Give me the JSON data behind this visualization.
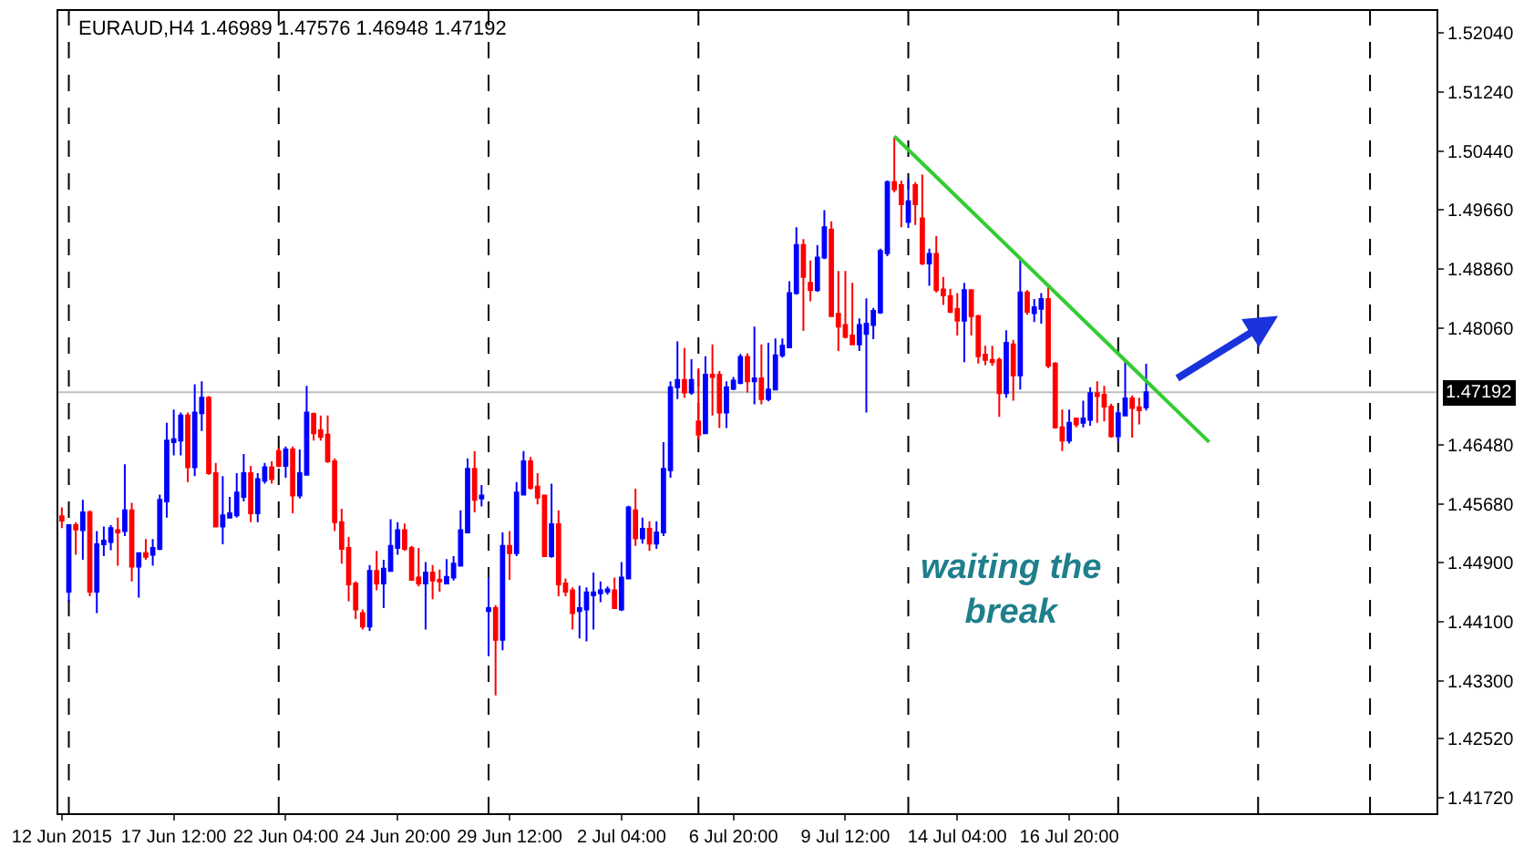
{
  "chart_data": {
    "type": "candlestick",
    "title": "EURAUD,H4 1.46989 1.47576 1.46948 1.47192",
    "categories": [
      "12 Jun 2015",
      null,
      null,
      null,
      null,
      null,
      null,
      null,
      null,
      null,
      null,
      null,
      null,
      null,
      null,
      null,
      "17 Jun 12:00",
      null,
      null,
      null,
      null,
      null,
      null,
      null,
      null,
      null,
      null,
      null,
      null,
      null,
      null,
      null,
      "22 Jun 04:00",
      null,
      null,
      null,
      null,
      null,
      null,
      null,
      null,
      null,
      null,
      null,
      null,
      null,
      null,
      null,
      "24 Jun 20:00",
      null,
      null,
      null,
      null,
      null,
      null,
      null,
      null,
      null,
      null,
      null,
      null,
      null,
      null,
      null,
      "29 Jun 12:00",
      null,
      null,
      null,
      null,
      null,
      null,
      null,
      null,
      null,
      null,
      null,
      null,
      null,
      null,
      null,
      "2 Jul 04:00",
      null,
      null,
      null,
      null,
      null,
      null,
      null,
      null,
      null,
      null,
      null,
      null,
      null,
      null,
      null,
      "6 Jul 20:00",
      null,
      null,
      null,
      null,
      null,
      null,
      null,
      null,
      null,
      null,
      null,
      null,
      null,
      null,
      null,
      "9 Jul 12:00",
      null,
      null,
      null,
      null,
      null,
      null,
      null,
      null,
      null,
      null,
      null,
      null,
      null,
      null,
      null,
      "14 Jul 04:00",
      null,
      null,
      null,
      null,
      null,
      null,
      null,
      null,
      null,
      null,
      null,
      null,
      null,
      null,
      null,
      "16 Jul 20:00",
      null,
      null,
      null,
      null,
      null,
      null,
      null,
      null,
      null,
      null,
      null,
      null,
      null,
      null,
      null,
      null,
      null,
      null,
      null,
      null,
      null,
      null,
      null,
      null,
      null,
      null,
      null,
      null,
      null,
      null,
      null,
      null,
      null,
      null,
      null,
      null,
      null,
      null,
      null,
      null,
      null,
      null,
      null,
      null,
      null,
      null,
      null,
      null,
      null,
      null,
      null,
      null
    ],
    "ohlc": [
      [
        1.4552,
        1.4564,
        1.4536,
        1.4546
      ],
      [
        1.445,
        1.4541,
        1.4436,
        1.454
      ],
      [
        1.454,
        1.4544,
        1.45,
        1.4534
      ],
      [
        1.4533,
        1.4574,
        1.4493,
        1.4557
      ],
      [
        1.4557,
        1.456,
        1.4444,
        1.445
      ],
      [
        1.445,
        1.4532,
        1.4421,
        1.4514
      ],
      [
        1.4514,
        1.4538,
        1.4498,
        1.4519
      ],
      [
        1.4517,
        1.454,
        1.4506,
        1.4536
      ],
      [
        1.4533,
        1.455,
        1.4485,
        1.453
      ],
      [
        1.4532,
        1.4622,
        1.4525,
        1.456
      ],
      [
        1.456,
        1.457,
        1.4464,
        1.4484
      ],
      [
        1.4484,
        1.4502,
        1.4442,
        1.4502
      ],
      [
        1.4502,
        1.4521,
        1.4493,
        1.4497
      ],
      [
        1.45,
        1.4521,
        1.4485,
        1.4509
      ],
      [
        1.4508,
        1.4581,
        1.4506,
        1.4574
      ],
      [
        1.4572,
        1.4678,
        1.455,
        1.4654
      ],
      [
        1.4652,
        1.4696,
        1.4634,
        1.4656
      ],
      [
        1.4654,
        1.4692,
        1.4634,
        1.4688
      ],
      [
        1.4688,
        1.4692,
        1.4598,
        1.4618
      ],
      [
        1.4618,
        1.473,
        1.4606,
        1.4692
      ],
      [
        1.4691,
        1.4734,
        1.4667,
        1.4712
      ],
      [
        1.4712,
        1.4714,
        1.4608,
        1.461
      ],
      [
        1.461,
        1.4624,
        1.4538,
        1.4538
      ],
      [
        1.4538,
        1.4606,
        1.4514,
        1.4553
      ],
      [
        1.455,
        1.4578,
        1.4549,
        1.4556
      ],
      [
        1.4553,
        1.461,
        1.455,
        1.4584
      ],
      [
        1.4578,
        1.4636,
        1.4572,
        1.461
      ],
      [
        1.461,
        1.462,
        1.4544,
        1.4556
      ],
      [
        1.4556,
        1.461,
        1.4544,
        1.4602
      ],
      [
        1.46,
        1.4624,
        1.4596,
        1.4618
      ],
      [
        1.4618,
        1.4626,
        1.4596,
        1.4602
      ],
      [
        1.464,
        1.4644,
        1.4618,
        1.462
      ],
      [
        1.462,
        1.4646,
        1.4604,
        1.4642
      ],
      [
        1.4642,
        1.4646,
        1.4556,
        1.458
      ],
      [
        1.458,
        1.4642,
        1.4576,
        1.461
      ],
      [
        1.4608,
        1.4728,
        1.4608,
        1.4692
      ],
      [
        1.469,
        1.4692,
        1.4654,
        1.4664
      ],
      [
        1.4668,
        1.4688,
        1.4654,
        1.4659
      ],
      [
        1.4662,
        1.4688,
        1.4624,
        1.4626
      ],
      [
        1.4626,
        1.463,
        1.4532,
        1.4544
      ],
      [
        1.4544,
        1.4562,
        1.4488,
        1.4508
      ],
      [
        1.4509,
        1.4524,
        1.4437,
        1.446
      ],
      [
        1.4461,
        1.4464,
        1.4413,
        1.4426
      ],
      [
        1.4421,
        1.4426,
        1.4399,
        1.4403
      ],
      [
        1.4403,
        1.4486,
        1.4397,
        1.4478
      ],
      [
        1.4478,
        1.4505,
        1.4452,
        1.4461
      ],
      [
        1.4461,
        1.4493,
        1.4428,
        1.4481
      ],
      [
        1.4478,
        1.4548,
        1.4477,
        1.4512
      ],
      [
        1.4509,
        1.4544,
        1.45,
        1.4533
      ],
      [
        1.4533,
        1.4542,
        1.4505,
        1.4508
      ],
      [
        1.4509,
        1.4512,
        1.4465,
        1.4466
      ],
      [
        1.4469,
        1.4509,
        1.4457,
        1.4461
      ],
      [
        1.4461,
        1.449,
        1.4399,
        1.4476
      ],
      [
        1.4476,
        1.4486,
        1.444,
        1.4465
      ],
      [
        1.4466,
        1.448,
        1.445,
        1.4464
      ],
      [
        1.4461,
        1.4494,
        1.446,
        1.447
      ],
      [
        1.4469,
        1.4498,
        1.4465,
        1.4488
      ],
      [
        1.4485,
        1.456,
        1.4484,
        1.4533
      ],
      [
        1.453,
        1.463,
        1.4529,
        1.4616
      ],
      [
        1.4616,
        1.464,
        1.4557,
        1.4574
      ],
      [
        1.4576,
        1.4594,
        1.4565,
        1.458
      ],
      [
        1.4424,
        1.4469,
        1.4363,
        1.4428
      ],
      [
        1.4428,
        1.4432,
        1.431,
        1.4385
      ],
      [
        1.4385,
        1.453,
        1.4371,
        1.4512
      ],
      [
        1.4512,
        1.4532,
        1.4466,
        1.4502
      ],
      [
        1.4502,
        1.4598,
        1.4498,
        1.4584
      ],
      [
        1.4581,
        1.464,
        1.4581,
        1.4626
      ],
      [
        1.4626,
        1.4632,
        1.4588,
        1.459
      ],
      [
        1.4592,
        1.461,
        1.4568,
        1.4577
      ],
      [
        1.458,
        1.4581,
        1.4498,
        1.4498
      ],
      [
        1.4498,
        1.4596,
        1.4496,
        1.4541
      ],
      [
        1.4541,
        1.456,
        1.4444,
        1.446
      ],
      [
        1.4461,
        1.4468,
        1.4444,
        1.445
      ],
      [
        1.4452,
        1.4456,
        1.4399,
        1.4421
      ],
      [
        1.4424,
        1.4458,
        1.4387,
        1.4428
      ],
      [
        1.4426,
        1.4456,
        1.4383,
        1.4449
      ],
      [
        1.4445,
        1.4476,
        1.4399,
        1.4449
      ],
      [
        1.4448,
        1.4464,
        1.4436,
        1.4452
      ],
      [
        1.445,
        1.4457,
        1.4446,
        1.4453
      ],
      [
        1.4452,
        1.4469,
        1.4428,
        1.4428
      ],
      [
        1.4426,
        1.449,
        1.4424,
        1.4469
      ],
      [
        1.4468,
        1.4566,
        1.4468,
        1.4564
      ],
      [
        1.456,
        1.4589,
        1.4512,
        1.4522
      ],
      [
        1.4522,
        1.455,
        1.4515,
        1.4535
      ],
      [
        1.4535,
        1.4545,
        1.4505,
        1.4515
      ],
      [
        1.4515,
        1.4545,
        1.4508,
        1.453
      ],
      [
        1.453,
        1.4652,
        1.4525,
        1.4616
      ],
      [
        1.4614,
        1.4734,
        1.4604,
        1.4726
      ],
      [
        1.4726,
        1.4788,
        1.471,
        1.4736
      ],
      [
        1.4736,
        1.4779,
        1.4712,
        1.4719
      ],
      [
        1.4719,
        1.4764,
        1.4716,
        1.4736
      ],
      [
        1.468,
        1.4752,
        1.4656,
        1.4662
      ],
      [
        1.4664,
        1.4768,
        1.4664,
        1.4743
      ],
      [
        1.4743,
        1.4784,
        1.4688,
        1.474
      ],
      [
        1.4743,
        1.4748,
        1.4671,
        1.4692
      ],
      [
        1.4692,
        1.4734,
        1.4671,
        1.4726
      ],
      [
        1.4724,
        1.474,
        1.4722,
        1.4735
      ],
      [
        1.4732,
        1.4771,
        1.473,
        1.4767
      ],
      [
        1.4767,
        1.4772,
        1.4719,
        1.4734
      ],
      [
        1.4734,
        1.4808,
        1.4703,
        1.4738
      ],
      [
        1.4738,
        1.4784,
        1.4703,
        1.471
      ],
      [
        1.471,
        1.4786,
        1.4707,
        1.4723
      ],
      [
        1.4723,
        1.4792,
        1.4722,
        1.4769
      ],
      [
        1.4769,
        1.4792,
        1.4766,
        1.4782
      ],
      [
        1.478,
        1.4869,
        1.4779,
        1.4853
      ],
      [
        1.4853,
        1.4942,
        1.4851,
        1.4918
      ],
      [
        1.4918,
        1.4926,
        1.4802,
        1.4875
      ],
      [
        1.4867,
        1.4897,
        1.4842,
        1.4857
      ],
      [
        1.4857,
        1.4918,
        1.4855,
        1.4901
      ],
      [
        1.4901,
        1.4965,
        1.4899,
        1.4942
      ],
      [
        1.4939,
        1.495,
        1.4821,
        1.4822
      ],
      [
        1.4825,
        1.4883,
        1.4775,
        1.4808
      ],
      [
        1.481,
        1.4883,
        1.4792,
        1.4794
      ],
      [
        1.4796,
        1.4867,
        1.4783,
        1.4784
      ],
      [
        1.4784,
        1.4819,
        1.4775,
        1.481
      ],
      [
        1.4798,
        1.4846,
        1.4692,
        1.4812
      ],
      [
        1.481,
        1.4833,
        1.4791,
        1.4829
      ],
      [
        1.4827,
        1.4913,
        1.4825,
        1.491
      ],
      [
        1.4907,
        1.5005,
        1.4903,
        1.5003
      ],
      [
        1.5003,
        1.5064,
        1.4989,
        1.4993
      ],
      [
        1.4999,
        1.5005,
        1.4942,
        1.4973
      ],
      [
        1.4949,
        1.5007,
        1.4941,
        1.4977
      ],
      [
        1.4999,
        1.5003,
        1.4945,
        1.4973
      ],
      [
        1.4954,
        1.5013,
        1.4891,
        1.4893
      ],
      [
        1.4893,
        1.4913,
        1.4863,
        1.4906
      ],
      [
        1.4906,
        1.493,
        1.4854,
        1.4857
      ],
      [
        1.4858,
        1.4875,
        1.4837,
        1.485
      ],
      [
        1.4849,
        1.4859,
        1.4826,
        1.4828
      ],
      [
        1.4832,
        1.4853,
        1.4796,
        1.4816
      ],
      [
        1.4816,
        1.4867,
        1.476,
        1.4857
      ],
      [
        1.4857,
        1.4857,
        1.4796,
        1.4822
      ],
      [
        1.4822,
        1.4824,
        1.4758,
        1.4768
      ],
      [
        1.477,
        1.4782,
        1.4756,
        1.4763
      ],
      [
        1.4763,
        1.4782,
        1.4755,
        1.476
      ],
      [
        1.4763,
        1.4766,
        1.4686,
        1.4718
      ],
      [
        1.4718,
        1.4803,
        1.4712,
        1.4786
      ],
      [
        1.4784,
        1.479,
        1.4708,
        1.4742
      ],
      [
        1.4742,
        1.4901,
        1.4723,
        1.4854
      ],
      [
        1.4854,
        1.4857,
        1.4824,
        1.4828
      ],
      [
        1.4826,
        1.4845,
        1.4814,
        1.4834
      ],
      [
        1.4832,
        1.4853,
        1.4812,
        1.4845
      ],
      [
        1.4845,
        1.4861,
        1.4752,
        1.4755
      ],
      [
        1.4758,
        1.476,
        1.467,
        1.4672
      ],
      [
        1.4672,
        1.4696,
        1.464,
        1.4654
      ],
      [
        1.4654,
        1.4696,
        1.465,
        1.4678
      ],
      [
        1.4684,
        1.4684,
        1.4672,
        1.4676
      ],
      [
        1.4678,
        1.4708,
        1.4672,
        1.4684
      ],
      [
        1.4682,
        1.4726,
        1.4674,
        1.4718
      ],
      [
        1.4718,
        1.4734,
        1.4678,
        1.4714
      ],
      [
        1.4716,
        1.4728,
        1.468,
        1.47
      ],
      [
        1.47,
        1.4704,
        1.4658,
        1.466
      ],
      [
        1.466,
        1.4696,
        1.4652,
        1.4691
      ],
      [
        1.4688,
        1.476,
        1.4687,
        1.4711
      ],
      [
        1.4711,
        1.4715,
        1.4658,
        1.4698
      ],
      [
        1.4699,
        1.4712,
        1.4676,
        1.4695
      ],
      [
        1.46989,
        1.47576,
        1.46948,
        1.47192
      ],
      null,
      null,
      null,
      null,
      null,
      null,
      null,
      null,
      null,
      null,
      null,
      null,
      null,
      null,
      null,
      null,
      null,
      null,
      null,
      null,
      null,
      null,
      null,
      null,
      null,
      null,
      null,
      null,
      null,
      null,
      null,
      null,
      null,
      null,
      null,
      null,
      null,
      null,
      null,
      null,
      null
    ],
    "colors": [
      "#ff0000",
      "#0000ff",
      "#ff0000",
      "#0000ff",
      "#ff0000",
      "#0000ff",
      "#0000ff",
      "#0000ff",
      "#ff0000",
      "#0000ff",
      "#ff0000",
      "#0000ff",
      "#ff0000",
      "#0000ff",
      "#0000ff",
      "#0000ff",
      "#0000ff",
      "#0000ff",
      "#ff0000",
      "#0000ff",
      "#0000ff",
      "#ff0000",
      "#ff0000",
      "#0000ff",
      "#0000ff",
      "#0000ff",
      "#0000ff",
      "#ff0000",
      "#0000ff",
      "#0000ff",
      "#ff0000",
      "#ff0000",
      "#0000ff",
      "#ff0000",
      "#0000ff",
      "#0000ff",
      "#ff0000",
      "#ff0000",
      "#ff0000",
      "#ff0000",
      "#ff0000",
      "#ff0000",
      "#ff0000",
      "#ff0000",
      "#0000ff",
      "#ff0000",
      "#0000ff",
      "#0000ff",
      "#0000ff",
      "#ff0000",
      "#ff0000",
      "#ff0000",
      "#0000ff",
      "#ff0000",
      "#ff0000",
      "#0000ff",
      "#0000ff",
      "#0000ff",
      "#0000ff",
      "#ff0000",
      "#0000ff",
      "#0000ff",
      "#ff0000",
      "#0000ff",
      "#ff0000",
      "#0000ff",
      "#0000ff",
      "#ff0000",
      "#ff0000",
      "#ff0000",
      "#0000ff",
      "#ff0000",
      "#ff0000",
      "#ff0000",
      "#0000ff",
      "#0000ff",
      "#0000ff",
      "#0000ff",
      "#0000ff",
      "#ff0000",
      "#0000ff",
      "#0000ff",
      "#ff0000",
      "#0000ff",
      "#ff0000",
      "#0000ff",
      "#0000ff",
      "#0000ff",
      "#0000ff",
      "#ff0000",
      "#0000ff",
      "#ff0000",
      "#0000ff",
      "#ff0000",
      "#ff0000",
      "#0000ff",
      "#0000ff",
      "#0000ff",
      "#ff0000",
      "#0000ff",
      "#ff0000",
      "#0000ff",
      "#0000ff",
      "#0000ff",
      "#0000ff",
      "#0000ff",
      "#ff0000",
      "#ff0000",
      "#0000ff",
      "#0000ff",
      "#ff0000",
      "#ff0000",
      "#ff0000",
      "#ff0000",
      "#0000ff",
      "#0000ff",
      "#0000ff",
      "#0000ff",
      "#0000ff",
      "#ff0000",
      "#ff0000",
      "#0000ff",
      "#ff0000",
      "#ff0000",
      "#0000ff",
      "#ff0000",
      "#ff0000",
      "#ff0000",
      "#ff0000",
      "#0000ff",
      "#ff0000",
      "#ff0000",
      "#ff0000",
      "#ff0000",
      "#ff0000",
      "#0000ff",
      "#ff0000",
      "#0000ff",
      "#ff0000",
      "#0000ff",
      "#0000ff",
      "#ff0000",
      "#ff0000",
      "#ff0000",
      "#0000ff",
      "#ff0000",
      "#0000ff",
      "#0000ff",
      "#ff0000",
      "#ff0000",
      "#ff0000",
      "#0000ff",
      "#0000ff",
      "#ff0000",
      "#ff0000",
      "#0000ff",
      null,
      null,
      null,
      null,
      null,
      null,
      null,
      null,
      null,
      null,
      null,
      null,
      null,
      null,
      null,
      null,
      null,
      null,
      null,
      null,
      null,
      null,
      null,
      null,
      null,
      null,
      null,
      null,
      null,
      null,
      null,
      null,
      null,
      null,
      null,
      null,
      null,
      null,
      null,
      null,
      null
    ],
    "series": [
      {
        "type": "line",
        "color": "#33cc33",
        "values": [
          null,
          null,
          null,
          null,
          null,
          null,
          null,
          null,
          null,
          null,
          null,
          null,
          null,
          null,
          null,
          null,
          null,
          null,
          null,
          null,
          null,
          null,
          null,
          null,
          null,
          null,
          null,
          null,
          null,
          null,
          null,
          null,
          null,
          null,
          null,
          null,
          null,
          null,
          null,
          null,
          null,
          null,
          null,
          null,
          null,
          null,
          null,
          null,
          null,
          null,
          null,
          null,
          null,
          null,
          null,
          null,
          null,
          null,
          null,
          null,
          null,
          null,
          null,
          null,
          null,
          null,
          null,
          null,
          null,
          null,
          null,
          null,
          null,
          null,
          null,
          null,
          null,
          null,
          null,
          null,
          null,
          null,
          null,
          null,
          null,
          null,
          null,
          null,
          null,
          null,
          null,
          null,
          null,
          null,
          null,
          null,
          null,
          null,
          null,
          null,
          null,
          null,
          null,
          null,
          null,
          null,
          null,
          null,
          null,
          null,
          null,
          null,
          null,
          null,
          null,
          null,
          null,
          null,
          null,
          1.5065,
          null,
          null,
          null,
          null,
          null,
          null,
          null,
          null,
          null,
          null,
          null,
          null,
          null,
          null,
          null,
          null,
          null,
          null,
          null,
          null,
          null,
          null,
          null,
          null,
          null,
          null,
          null,
          null,
          null,
          null,
          null,
          null,
          null,
          null,
          null,
          null,
          null,
          null,
          null,
          null,
          null,
          null,
          null,
          null,
          1.4652,
          null,
          null,
          null,
          null,
          null,
          null,
          null,
          null,
          null,
          null,
          null,
          null,
          null,
          null,
          null,
          null,
          null,
          null,
          null,
          null,
          null,
          null,
          null,
          null,
          null,
          null,
          null,
          null,
          null,
          null,
          null,
          null
        ]
      }
    ],
    "ylim": [
      1.4151,
      1.5234
    ],
    "yticks": [
      {
        "value": 1.5204,
        "label": "1.52040"
      },
      {
        "value": 1.5124,
        "label": "1.51240"
      },
      {
        "value": 1.5044,
        "label": "1.50440"
      },
      {
        "value": 1.4966,
        "label": "1.49660"
      },
      {
        "value": 1.4886,
        "label": "1.48860"
      },
      {
        "value": 1.4806,
        "label": "1.48060"
      },
      {
        "value": 1.4648,
        "label": "1.46480"
      },
      {
        "value": 1.4568,
        "label": "1.45680"
      },
      {
        "value": 1.449,
        "label": "1.44900"
      },
      {
        "value": 1.441,
        "label": "1.44100"
      },
      {
        "value": 1.433,
        "label": "1.43300"
      },
      {
        "value": 1.4252,
        "label": "1.42520"
      },
      {
        "value": 1.4172,
        "label": "1.41720"
      }
    ],
    "ref_lines": [
      {
        "axis": "y",
        "value": 1.47192,
        "label": "1.47192",
        "color": "#c0c0c0"
      }
    ],
    "annotations": [
      "waiting the\nbreak"
    ],
    "grid": false
  }
}
